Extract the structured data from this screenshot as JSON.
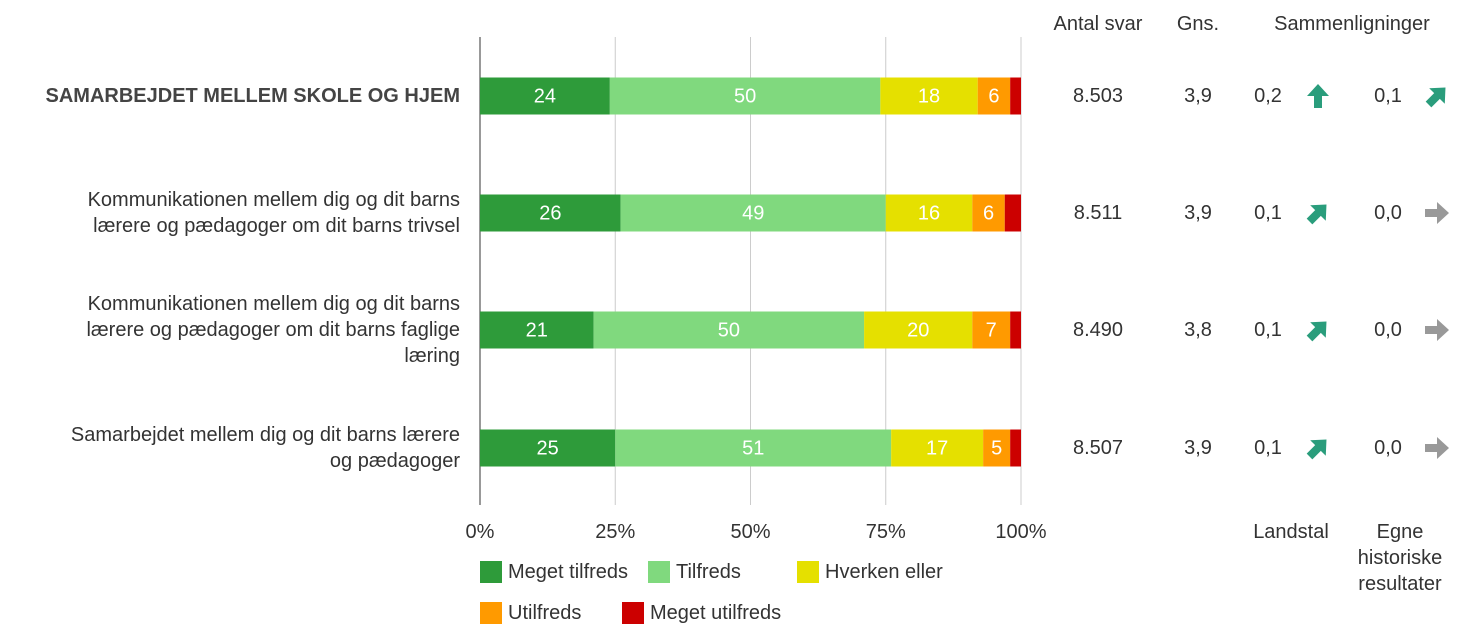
{
  "chart_data": {
    "type": "stacked_bar_horizontal",
    "categories": [
      "SAMARBEJDET MELLEM SKOLE OG HJEM",
      "Kommunikationen mellem dig og dit barns\nlærere og pædagoger om dit barns trivsel",
      "Kommunikationen mellem dig og dit barns\nlærere og pædagoger om dit barns faglige\nlæring",
      "Samarbejdet mellem dig og dit barns lærere\nog pædagoger"
    ],
    "series": [
      {
        "name": "Meget tilfreds",
        "color": "#2e9b3a",
        "values": [
          24,
          26,
          21,
          25
        ]
      },
      {
        "name": "Tilfreds",
        "color": "#80d97e",
        "values": [
          50,
          49,
          50,
          51
        ]
      },
      {
        "name": "Hverken eller",
        "color": "#e5e000",
        "values": [
          18,
          16,
          20,
          17
        ]
      },
      {
        "name": "Utilfreds",
        "color": "#ff9a00",
        "values": [
          6,
          6,
          7,
          5
        ]
      },
      {
        "name": "Meget utilfreds",
        "color": "#cc0000",
        "values": [
          2,
          3,
          2,
          2
        ]
      }
    ],
    "xlim": [
      0,
      100
    ],
    "xticks": [
      {
        "value": 0,
        "label": "0%"
      },
      {
        "value": 25,
        "label": "25%"
      },
      {
        "value": 50,
        "label": "50%"
      },
      {
        "value": 75,
        "label": "75%"
      },
      {
        "value": 100,
        "label": "100%"
      }
    ],
    "grid": true,
    "columns": [
      {
        "header": "Antal svar",
        "values": [
          8503,
          8511,
          8490,
          8507
        ],
        "value_labels": [
          "8.503",
          "8.511",
          "8.490",
          "8.507"
        ]
      },
      {
        "header": "Gns.",
        "values": [
          3.9,
          3.9,
          3.8,
          3.9
        ],
        "value_labels": [
          "3,9",
          "3,9",
          "3,8",
          "3,9"
        ]
      }
    ],
    "comparisons": {
      "header": "Sammenligninger",
      "groups": [
        {
          "name": "Landstal",
          "values": [
            0.2,
            0.1,
            0.1,
            0.1
          ],
          "value_labels": [
            "0,2",
            "0,1",
            "0,1",
            "0,1"
          ],
          "arrows": [
            "up",
            "up-right",
            "up-right",
            "up-right"
          ]
        },
        {
          "name": "Egne\nhistoriske\nresultater",
          "values": [
            0.1,
            0.0,
            0.0,
            0.0
          ],
          "value_labels": [
            "0,1",
            "0,0",
            "0,0",
            "0,0"
          ],
          "arrows": [
            "up-right",
            "right",
            "right",
            "right"
          ]
        }
      ]
    }
  }
}
